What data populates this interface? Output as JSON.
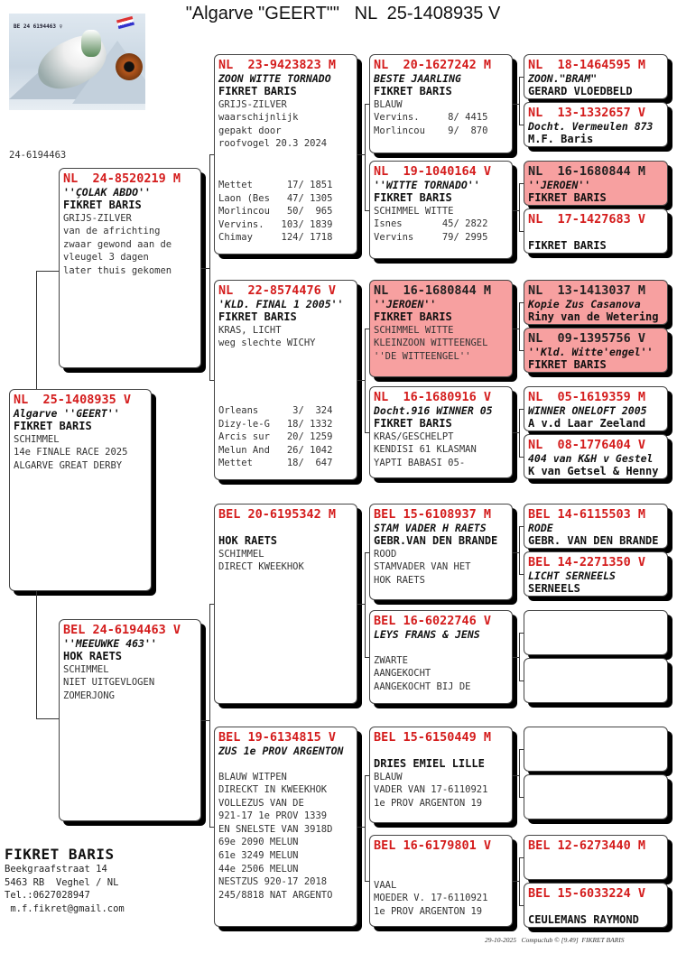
{
  "title": "\"Algarve \"GEERT\"\"   NL  25-1408935 V",
  "photo": {
    "ring_text": "BE 24 6194463 ♀",
    "logo_text": "FIKRET BARIS"
  },
  "id_label": "24-6194463",
  "colors": {
    "ring_red": "#d41c1c",
    "highlight": "#f7a0a0"
  },
  "pedigree": [
    {
      "ring": "NL  25-1408935 V",
      "name": "Algarve ''GEERT''",
      "owner": "FIKRET BARIS",
      "lines": [
        "SCHIMMEL",
        "14e FINALE RACE 2025",
        "ALGARVE GREAT DERBY"
      ],
      "results": []
    },
    {
      "ring": "NL  24-8520219 M",
      "name": "''ÇOLAK ABDO''",
      "owner": "FIKRET BARIS",
      "lines": [
        "GRIJS-ZILVER",
        "van de africhting",
        "zwaar gewond aan de",
        "vleugel 3 dagen",
        "later thuis gekomen"
      ],
      "results": []
    },
    {
      "ring": "BEL 24-6194463 V",
      "name": "''MEEUWKE 463''",
      "owner": "HOK RAETS",
      "lines": [
        "SCHIMMEL",
        "NIET UITGEVLOGEN",
        "ZOMERJONG"
      ],
      "results": []
    },
    {
      "ring": "NL  23-9423823 M",
      "name": "ZOON WITTE TORNADO",
      "owner": "FIKRET BARIS",
      "lines": [
        "GRIJS-ZILVER",
        "waarschijnlijk",
        "gepakt door",
        "roofvogel 20.3 2024"
      ],
      "results": [
        "Mettet      17/ 1851",
        "Laon (Bes   47/ 1305",
        "Morlincou   50/  965",
        "Vervins.   103/ 1839",
        "Chimay     124/ 1718"
      ]
    },
    {
      "ring": "NL  22-8574476 V",
      "name": "'KLD. FINAL 1 2005''",
      "owner": "FIKRET BARIS",
      "lines": [
        "KRAS, LICHT",
        "weg slechte WICHY"
      ],
      "results": [
        "Orleans      3/  324",
        "Dizy-le-G   18/ 1332",
        "Arcis sur   20/ 1259",
        "Melun And   26/ 1042",
        "Mettet      18/  647"
      ]
    },
    {
      "ring": "BEL 20-6195342 M",
      "name": "",
      "owner": "HOK RAETS",
      "lines": [
        "SCHIMMEL",
        "DIRECT KWEEKHOK"
      ],
      "results": []
    },
    {
      "ring": "BEL 19-6134815 V",
      "name": "ZUS 1e PROV ARGENTON",
      "owner": "",
      "lines": [
        "BLAUW WITPEN",
        "DIRECKT IN KWEEKHOK",
        "VOLLEZUS VAN DE",
        "921-17 1e PROV 1339",
        "EN SNELSTE VAN 3918D",
        "69e 2090 MELUN",
        "61e 3249 MELUN",
        "44e 2506 MELUN",
        "",
        "NESTZUS 920-17 2018",
        "245/8818 NAT ARGENTO"
      ],
      "results": []
    },
    {
      "ring": "NL  20-1627242 M",
      "name": "BESTE JAARLING",
      "owner": "FIKRET BARIS",
      "lines": [
        "BLAUW"
      ],
      "results": [
        "Vervins.     8/ 4415",
        "Morlincou    9/  870"
      ]
    },
    {
      "ring": "NL  19-1040164 V",
      "name": "''WITTE TORNADO''",
      "owner": "FIKRET BARIS",
      "lines": [
        "SCHIMMEL WITTE"
      ],
      "results": [
        "Isnes       45/ 2822",
        "Vervins     79/ 2995"
      ]
    },
    {
      "ring": "NL  16-1680844 M",
      "name": "''JEROEN''",
      "owner": "FIKRET BARIS",
      "lines": [
        "SCHIMMEL WITTE",
        "KLEINZOON WITTEENGEL",
        "''DE WITTEENGEL''"
      ],
      "results": [],
      "highlight": true
    },
    {
      "ring": "NL  16-1680916 V",
      "name": "Docht.916 WINNER 05",
      "owner": "FIKRET BARIS",
      "lines": [
        "KRAS/GESCHELPT",
        "KENDISI 61 KLASMAN",
        "YAPTI BABASI 05-"
      ],
      "results": []
    },
    {
      "ring": "BEL 15-6108937 M",
      "name": "STAM VADER H RAETS",
      "owner": "GEBR.VAN DEN BRANDE",
      "lines": [
        "ROOD",
        "STAMVADER VAN HET",
        "HOK RAETS"
      ],
      "results": []
    },
    {
      "ring": "BEL 16-6022746 V",
      "name": "LEYS FRANS & JENS",
      "owner": "",
      "lines": [
        "ZWARTE",
        "AANGEKOCHT",
        "AANGEKOCHT BIJ DE"
      ],
      "results": []
    },
    {
      "ring": "BEL 15-6150449 M",
      "name": "",
      "owner": "DRIES EMIEL LILLE",
      "lines": [
        "BLAUW",
        "VADER VAN 17-6110921",
        "1e PROV ARGENTON 19"
      ],
      "results": []
    },
    {
      "ring": "BEL 16-6179801 V",
      "name": "",
      "owner": "",
      "lines": [
        "VAAL",
        "MOEDER V. 17-6110921",
        "1e PROV ARGENTON 19"
      ],
      "results": []
    },
    {
      "ring": "NL  18-1464595 M",
      "name": "ZOON.\"BRAM\"",
      "owner": "GERARD VLOEDBELD",
      "lines": [],
      "results": []
    },
    {
      "ring": "NL  13-1332657 V",
      "name": "Docht. Vermeulen 873",
      "owner": "M.F. Baris",
      "lines": [],
      "results": []
    },
    {
      "ring": "NL  16-1680844 M",
      "name": "''JEROEN''",
      "owner": "FIKRET BARIS",
      "lines": [],
      "results": [],
      "highlight": true
    },
    {
      "ring": "NL  17-1427683 V",
      "name": "",
      "owner": "FIKRET BARIS",
      "lines": [],
      "results": []
    },
    {
      "ring": "NL  13-1413037 M",
      "name": "Kopie Zus Casanova",
      "owner": "Riny van de Wetering",
      "lines": [],
      "results": [],
      "highlight": true
    },
    {
      "ring": "NL  09-1395756 V",
      "name": "''Kld. Witte'engel''",
      "owner": "FIKRET BARIS",
      "lines": [],
      "results": [],
      "highlight": true
    },
    {
      "ring": "NL  05-1619359 M",
      "name": "WINNER ONELOFT 2005",
      "owner": "A v.d Laar Zeeland",
      "lines": [],
      "results": []
    },
    {
      "ring": "NL  08-1776404 V",
      "name": "404 van K&H v Gestel",
      "owner": "K van Getsel & Henny",
      "lines": [],
      "results": []
    },
    {
      "ring": "BEL 14-6115503 M",
      "name": "RODE",
      "owner": "GEBR. VAN DEN BRANDE",
      "lines": [],
      "results": []
    },
    {
      "ring": "BEL 14-2271350 V",
      "name": "LICHT SERNEELS",
      "owner": "SERNEELS",
      "lines": [],
      "results": []
    },
    {
      "ring": "",
      "name": "",
      "owner": "",
      "lines": [],
      "results": []
    },
    {
      "ring": "",
      "name": "",
      "owner": "",
      "lines": [],
      "results": []
    },
    {
      "ring": "",
      "name": "",
      "owner": "",
      "lines": [],
      "results": []
    },
    {
      "ring": "",
      "name": "",
      "owner": "",
      "lines": [],
      "results": []
    },
    {
      "ring": "BEL 12-6273440 M",
      "name": "",
      "owner": "",
      "lines": [],
      "results": []
    },
    {
      "ring": "BEL 15-6033224 V",
      "name": "",
      "owner": "CEULEMANS RAYMOND",
      "lines": [],
      "results": []
    }
  ],
  "owner_info": {
    "name": "FIKRET BARIS",
    "lines": [
      "Beekgraafstraat 14",
      "5463 RB  Veghel / NL",
      "Tel.:0627028947",
      " m.f.fikret@gmail.com"
    ]
  },
  "footer": "29-10-2025   Compuclub © [9.49]  FIKRET BARIS"
}
